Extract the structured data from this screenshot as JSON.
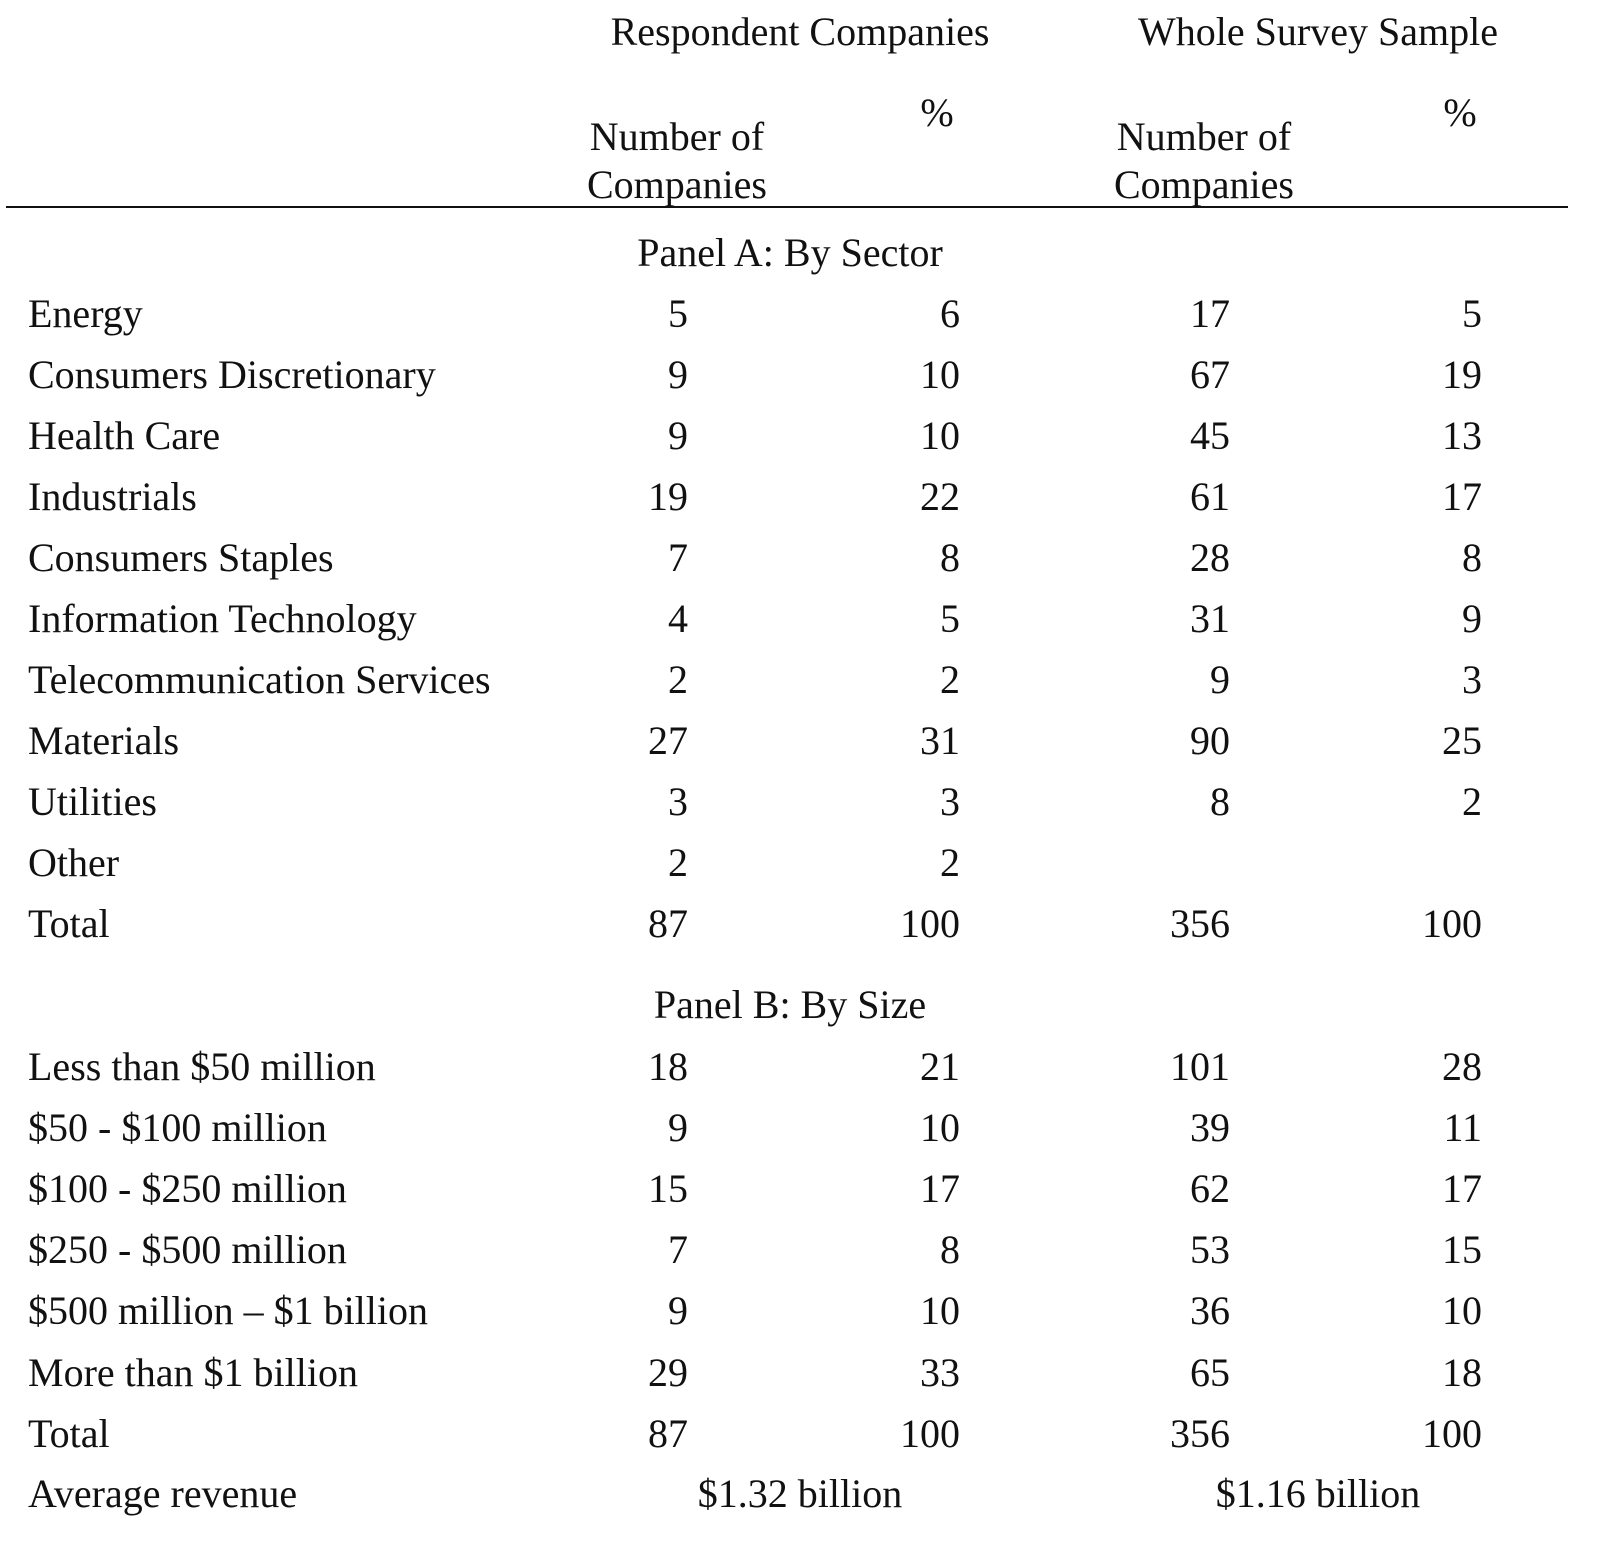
{
  "header": {
    "groups": [
      "Respondent Companies",
      "Whole Survey Sample"
    ],
    "columns": [
      "Number of Companies",
      "%",
      "Number of Companies",
      "%"
    ]
  },
  "panels": [
    {
      "title": "Panel A: By Sector",
      "rows": [
        [
          "Energy",
          5,
          6,
          17,
          5
        ],
        [
          "Consumers Discretionary",
          9,
          10,
          67,
          19
        ],
        [
          "Health Care",
          9,
          10,
          45,
          13
        ],
        [
          "Industrials",
          19,
          22,
          61,
          17
        ],
        [
          "Consumers Staples",
          7,
          8,
          28,
          8
        ],
        [
          "Information Technology",
          4,
          5,
          31,
          9
        ],
        [
          "Telecommunication Services",
          2,
          2,
          9,
          3
        ],
        [
          "Materials",
          27,
          31,
          90,
          25
        ],
        [
          "Utilities",
          3,
          3,
          8,
          2
        ],
        [
          "Other",
          2,
          2,
          null,
          null
        ],
        [
          "Total",
          87,
          100,
          356,
          100
        ]
      ]
    },
    {
      "title": "Panel B: By Size",
      "rows": [
        [
          "Less than $50 million",
          18,
          21,
          101,
          28
        ],
        [
          "$50 - $100 million",
          9,
          10,
          39,
          11
        ],
        [
          "$100 - $250 million",
          15,
          17,
          62,
          17
        ],
        [
          "$250 - $500 million",
          7,
          8,
          53,
          15
        ],
        [
          "$500 million – $1 billion",
          9,
          10,
          36,
          10
        ],
        [
          "More than $1 billion",
          29,
          33,
          65,
          18
        ],
        [
          "Total",
          87,
          100,
          356,
          100
        ]
      ]
    }
  ],
  "average_revenue": {
    "label": "Average revenue",
    "values": [
      "$1.32 billion",
      "$1.16 billion"
    ]
  }
}
